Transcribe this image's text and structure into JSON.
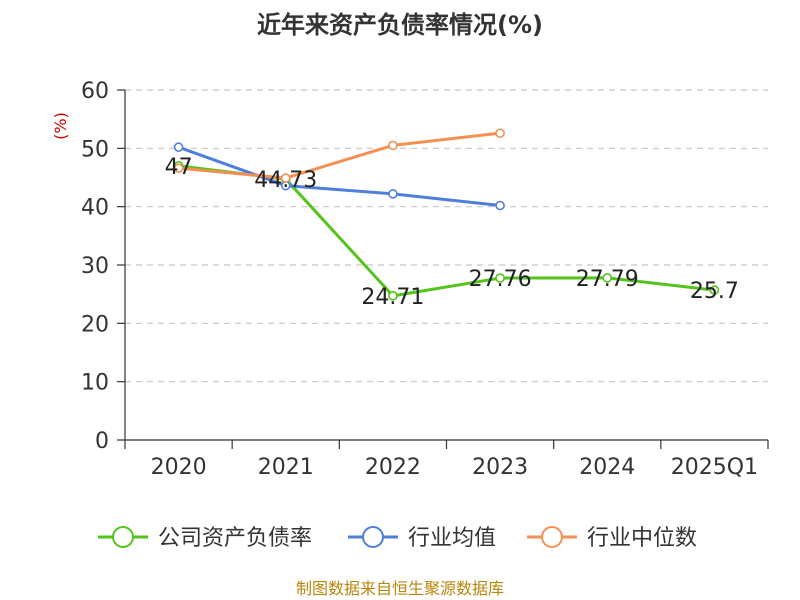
{
  "chart_data": {
    "type": "line",
    "title": "近年来资产负债率情况(%)",
    "ylabel": "(%)",
    "xlabel": "",
    "categories": [
      "2020",
      "2021",
      "2022",
      "2023",
      "2024",
      "2025Q1"
    ],
    "ylim": [
      0,
      60
    ],
    "yticks": [
      "0",
      "10",
      "20",
      "30",
      "40",
      "50",
      "60"
    ],
    "grid": true,
    "legend_position": "bottom",
    "series": [
      {
        "name": "公司资产负债率",
        "color": "#52c41a",
        "values": [
          47,
          44.73,
          24.71,
          27.76,
          27.79,
          25.7
        ],
        "labels": [
          "47",
          "44.73",
          "24.71",
          "27.76",
          "27.79",
          "25.7"
        ]
      },
      {
        "name": "行业均值",
        "color": "#4f7fdc",
        "values": [
          50.2,
          43.6,
          42.2,
          40.2,
          null,
          null
        ],
        "labels": []
      },
      {
        "name": "行业中位数",
        "color": "#f59053",
        "values": [
          46.6,
          44.9,
          50.5,
          52.6,
          null,
          null
        ],
        "labels": []
      }
    ],
    "source": "制图数据来自恒生聚源数据库"
  }
}
